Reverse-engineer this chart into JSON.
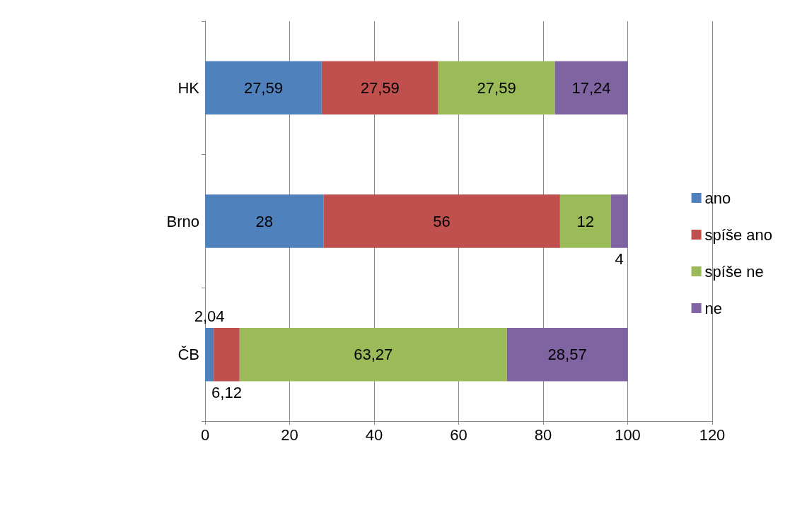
{
  "chart_data": {
    "type": "bar",
    "orientation": "horizontal",
    "stacked": true,
    "categories": [
      "HK",
      "Brno",
      "ČB"
    ],
    "series": [
      {
        "name": "ano",
        "color": "#4f81bd",
        "values": [
          27.59,
          28,
          2.04
        ],
        "value_labels": [
          "27,59",
          "28",
          "2,04"
        ]
      },
      {
        "name": "spíše ano",
        "color": "#c0504d",
        "values": [
          27.59,
          56,
          6.12
        ],
        "value_labels": [
          "27,59",
          "56",
          "6,12"
        ]
      },
      {
        "name": "spíše ne",
        "color": "#9bbb59",
        "values": [
          27.59,
          12,
          63.27
        ],
        "value_labels": [
          "27,59",
          "12",
          "63,27"
        ]
      },
      {
        "name": "ne",
        "color": "#8064a2",
        "values": [
          17.24,
          4,
          28.57
        ],
        "value_labels": [
          "17,24",
          "4",
          "28,57"
        ]
      }
    ],
    "xlim": [
      0,
      120
    ],
    "xticks": [
      0,
      20,
      40,
      60,
      80,
      100,
      120
    ],
    "grid": "x",
    "legend": "right"
  }
}
